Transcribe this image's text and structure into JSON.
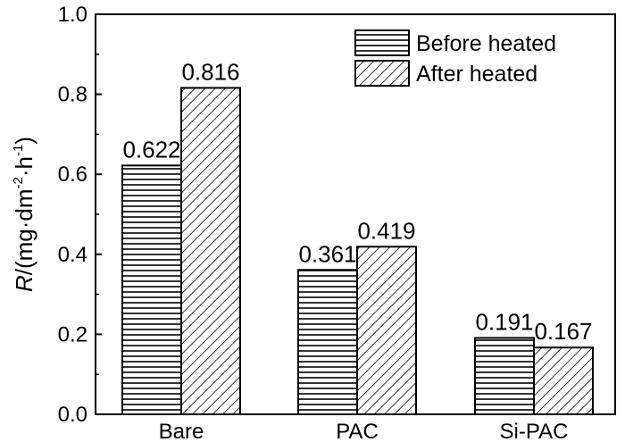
{
  "chart_data": {
    "type": "bar",
    "categories": [
      "Bare",
      "PAC",
      "Si-PAC"
    ],
    "series": [
      {
        "name": "Before heated",
        "values": [
          0.622,
          0.361,
          0.191
        ],
        "pattern": "horizontal-lines"
      },
      {
        "name": "After heated",
        "values": [
          0.816,
          0.419,
          0.167
        ],
        "pattern": "diagonal-lines"
      }
    ],
    "data_labels": [
      [
        "0.622",
        "0.361",
        "0.191"
      ],
      [
        "0.816",
        "0.419",
        "0.167"
      ]
    ],
    "ylabel": {
      "symbol": "R",
      "unit_open": "/(mg·dm",
      "exp1": "-2",
      "mid": "·h",
      "exp2": "-1",
      "close": ")"
    },
    "ylim": [
      0.0,
      1.0
    ],
    "yticks": [
      "0.0",
      "0.2",
      "0.4",
      "0.6",
      "0.8",
      "1.0"
    ],
    "ytick_values": [
      0.0,
      0.2,
      0.4,
      0.6,
      0.8,
      1.0
    ],
    "legend_position": "top-right",
    "grid": false,
    "colors": {
      "stroke": "#000000",
      "fill": "#ffffff"
    }
  }
}
